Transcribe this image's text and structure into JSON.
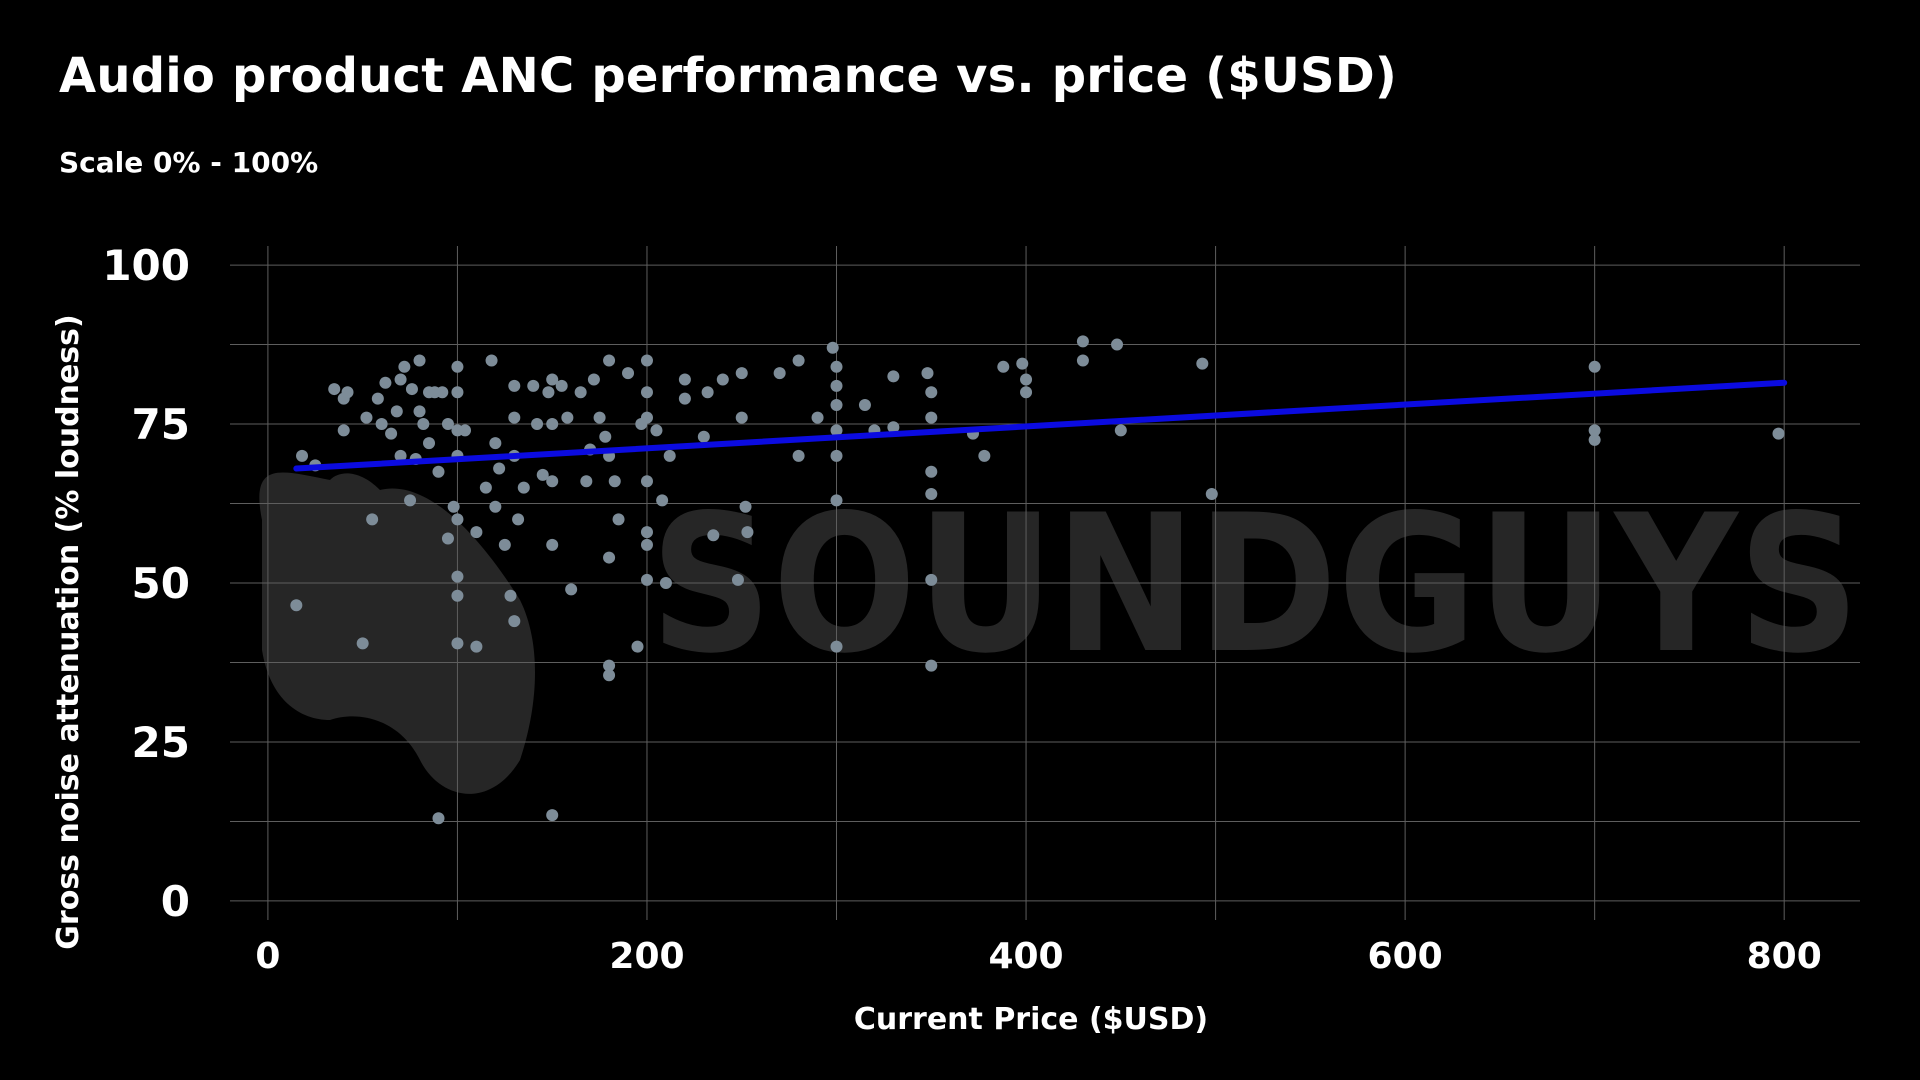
{
  "chart_data": {
    "type": "scatter",
    "title": "Audio product ANC performance vs. price ($USD)",
    "subtitle": "Scale 0% - 100%",
    "xlabel": "Current Price ($USD)",
    "ylabel": "Gross noise attenuation (% loudness)",
    "xlim": [
      -20,
      840
    ],
    "ylim": [
      -3,
      103
    ],
    "x_ticks": [
      0,
      200,
      400,
      600,
      800
    ],
    "y_ticks": [
      0,
      25,
      50,
      75,
      100
    ],
    "x_minor_gridlines": [
      100,
      300,
      500,
      700
    ],
    "y_minor_gridlines": [
      12.5,
      37.5,
      62.5,
      87.5
    ],
    "grid": true,
    "watermark": "SOUNDGUYS",
    "point_color": "#7d8c98",
    "trend_color": "#0b0be0",
    "trendline": {
      "x": [
        15,
        800
      ],
      "y": [
        68,
        81.5
      ]
    },
    "points": [
      [
        15,
        46.5
      ],
      [
        18,
        70
      ],
      [
        25,
        68.5
      ],
      [
        35,
        80.5
      ],
      [
        40,
        74
      ],
      [
        40,
        79
      ],
      [
        42,
        80
      ],
      [
        50,
        40.5
      ],
      [
        52,
        76
      ],
      [
        55,
        60
      ],
      [
        58,
        79
      ],
      [
        60,
        75
      ],
      [
        62,
        81.5
      ],
      [
        65,
        73.5
      ],
      [
        68,
        77
      ],
      [
        70,
        82
      ],
      [
        70,
        70
      ],
      [
        72,
        84
      ],
      [
        75,
        63
      ],
      [
        76,
        80.5
      ],
      [
        78,
        69.5
      ],
      [
        80,
        85
      ],
      [
        80,
        77
      ],
      [
        82,
        75
      ],
      [
        85,
        80
      ],
      [
        85,
        72
      ],
      [
        88,
        80
      ],
      [
        90,
        67.5
      ],
      [
        90,
        13
      ],
      [
        92,
        80
      ],
      [
        95,
        75
      ],
      [
        95,
        57
      ],
      [
        98,
        62
      ],
      [
        100,
        84
      ],
      [
        100,
        80
      ],
      [
        100,
        74
      ],
      [
        100,
        70
      ],
      [
        100,
        60
      ],
      [
        100,
        51
      ],
      [
        100,
        48
      ],
      [
        100,
        40.5
      ],
      [
        104,
        74
      ],
      [
        110,
        58
      ],
      [
        110,
        40
      ],
      [
        115,
        65
      ],
      [
        118,
        85
      ],
      [
        120,
        72
      ],
      [
        120,
        62
      ],
      [
        122,
        68
      ],
      [
        125,
        56
      ],
      [
        128,
        48
      ],
      [
        130,
        81
      ],
      [
        130,
        76
      ],
      [
        130,
        70
      ],
      [
        130,
        44
      ],
      [
        132,
        60
      ],
      [
        135,
        65
      ],
      [
        140,
        81
      ],
      [
        142,
        75
      ],
      [
        145,
        67
      ],
      [
        148,
        80
      ],
      [
        150,
        82
      ],
      [
        150,
        75
      ],
      [
        150,
        66
      ],
      [
        150,
        56
      ],
      [
        150,
        13.5
      ],
      [
        155,
        81
      ],
      [
        158,
        76
      ],
      [
        160,
        49
      ],
      [
        165,
        80
      ],
      [
        168,
        66
      ],
      [
        170,
        71
      ],
      [
        172,
        82
      ],
      [
        175,
        76
      ],
      [
        178,
        73
      ],
      [
        180,
        85
      ],
      [
        180,
        70
      ],
      [
        180,
        54
      ],
      [
        180,
        37
      ],
      [
        180,
        35.5
      ],
      [
        183,
        66
      ],
      [
        185,
        60
      ],
      [
        190,
        83
      ],
      [
        195,
        40
      ],
      [
        197,
        75
      ],
      [
        200,
        85
      ],
      [
        200,
        80
      ],
      [
        200,
        76
      ],
      [
        200,
        66
      ],
      [
        200,
        58
      ],
      [
        200,
        56
      ],
      [
        200,
        50.5
      ],
      [
        205,
        74
      ],
      [
        208,
        63
      ],
      [
        210,
        50
      ],
      [
        212,
        70
      ],
      [
        220,
        82
      ],
      [
        220,
        79
      ],
      [
        230,
        73
      ],
      [
        232,
        80
      ],
      [
        235,
        57.5
      ],
      [
        240,
        82
      ],
      [
        248,
        50.5
      ],
      [
        250,
        83
      ],
      [
        250,
        76
      ],
      [
        252,
        62
      ],
      [
        253,
        58
      ],
      [
        270,
        83
      ],
      [
        280,
        85
      ],
      [
        280,
        70
      ],
      [
        290,
        76
      ],
      [
        298,
        87
      ],
      [
        300,
        84
      ],
      [
        300,
        81
      ],
      [
        300,
        78
      ],
      [
        300,
        74
      ],
      [
        300,
        70
      ],
      [
        300,
        63
      ],
      [
        300,
        40
      ],
      [
        315,
        78
      ],
      [
        320,
        74
      ],
      [
        330,
        82.5
      ],
      [
        330,
        74.5
      ],
      [
        348,
        83
      ],
      [
        350,
        80
      ],
      [
        350,
        76
      ],
      [
        350,
        67.5
      ],
      [
        350,
        64
      ],
      [
        350,
        50.5
      ],
      [
        350,
        37
      ],
      [
        372,
        73.5
      ],
      [
        378,
        70
      ],
      [
        388,
        84
      ],
      [
        398,
        84.5
      ],
      [
        400,
        82
      ],
      [
        400,
        80
      ],
      [
        430,
        88
      ],
      [
        430,
        85
      ],
      [
        448,
        87.5
      ],
      [
        450,
        74
      ],
      [
        493,
        84.5
      ],
      [
        498,
        64
      ],
      [
        700,
        84
      ],
      [
        700,
        74
      ],
      [
        700,
        72.5
      ],
      [
        797,
        73.5
      ]
    ]
  }
}
